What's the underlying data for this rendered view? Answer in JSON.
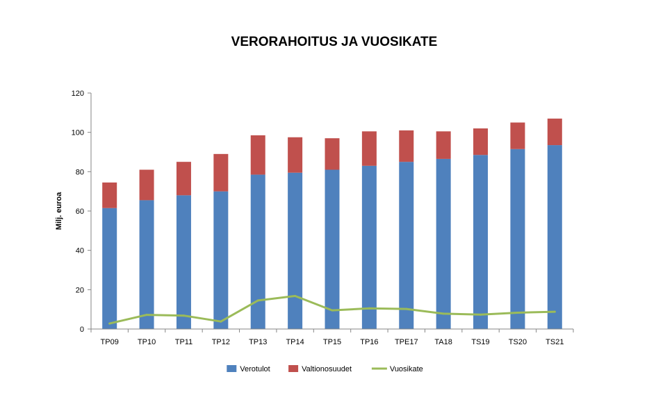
{
  "chart_data": {
    "type": "bar",
    "stacked": true,
    "title": "VERORAHOITUS JA VUOSIKATE",
    "ylabel": "Milj. euroa",
    "xlabel": "",
    "ylim": [
      0,
      120
    ],
    "yticks": [
      0,
      20,
      40,
      60,
      80,
      100,
      120
    ],
    "grid": false,
    "legend_position": "bottom",
    "categories": [
      "TP09",
      "TP10",
      "TP11",
      "TP12",
      "TP13",
      "TP14",
      "TP15",
      "TP16",
      "TPE17",
      "TA18",
      "TS19",
      "TS20",
      "TS21"
    ],
    "series": [
      {
        "name": "Verotulot",
        "type": "bar",
        "color": "#4F81BD",
        "values": [
          61.5,
          65.5,
          68,
          70,
          78.5,
          79.5,
          81,
          83,
          85,
          86.5,
          88.5,
          91.5,
          93.5
        ]
      },
      {
        "name": "Valtionosuudet",
        "type": "bar",
        "color": "#C0504D",
        "values": [
          13,
          15.5,
          17,
          19,
          20,
          18,
          16,
          17.5,
          16,
          14,
          13.5,
          13.5,
          13.5
        ]
      },
      {
        "name": "Vuosikate",
        "type": "line",
        "color": "#9BBB59",
        "values": [
          2.8,
          7.2,
          6.8,
          3.8,
          14.5,
          16.8,
          9.5,
          10.5,
          10.2,
          7.8,
          7.3,
          8.3,
          8.8
        ]
      }
    ]
  }
}
